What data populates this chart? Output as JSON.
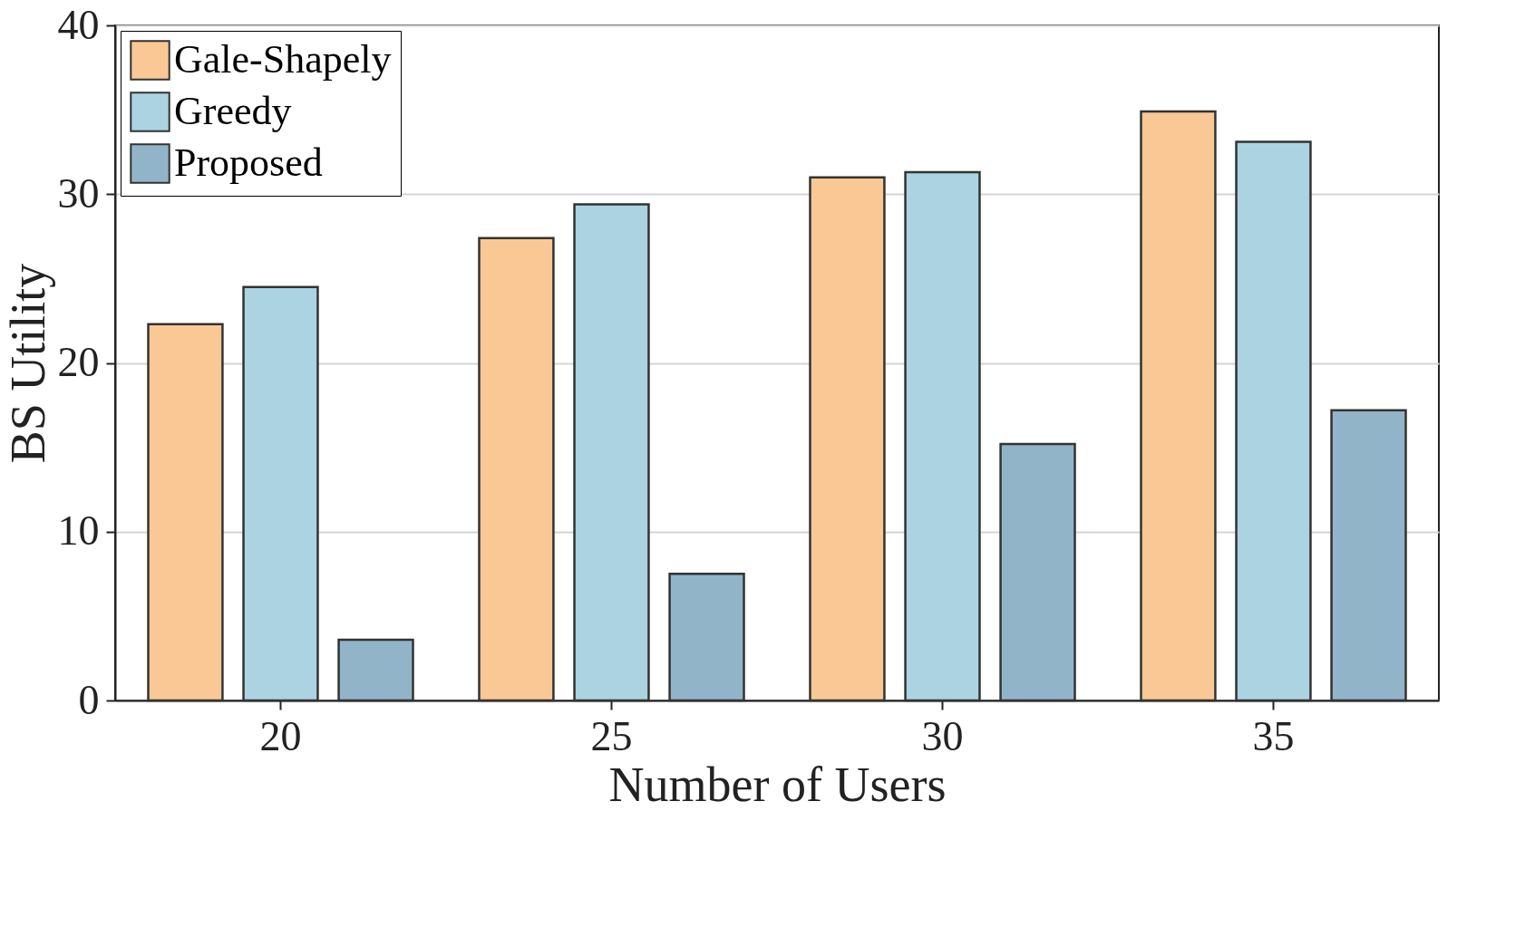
{
  "chart_data": {
    "type": "bar",
    "xlabel": "Number of Users",
    "ylabel": "BS Utility",
    "categories": [
      "20",
      "25",
      "30",
      "35"
    ],
    "series": [
      {
        "name": "Gale-Shapely",
        "color": "#f9c895",
        "values": [
          22.3,
          27.4,
          31.0,
          34.9
        ]
      },
      {
        "name": "Greedy",
        "color": "#abd3e1",
        "values": [
          24.5,
          29.4,
          31.3,
          33.1
        ]
      },
      {
        "name": "Proposed",
        "color": "#92b4c8",
        "values": [
          3.6,
          7.5,
          15.2,
          17.2
        ]
      }
    ],
    "ylim": [
      0,
      40
    ],
    "yticks": [
      0,
      10,
      20,
      30,
      40
    ],
    "grid": "y",
    "legend": "top left"
  }
}
